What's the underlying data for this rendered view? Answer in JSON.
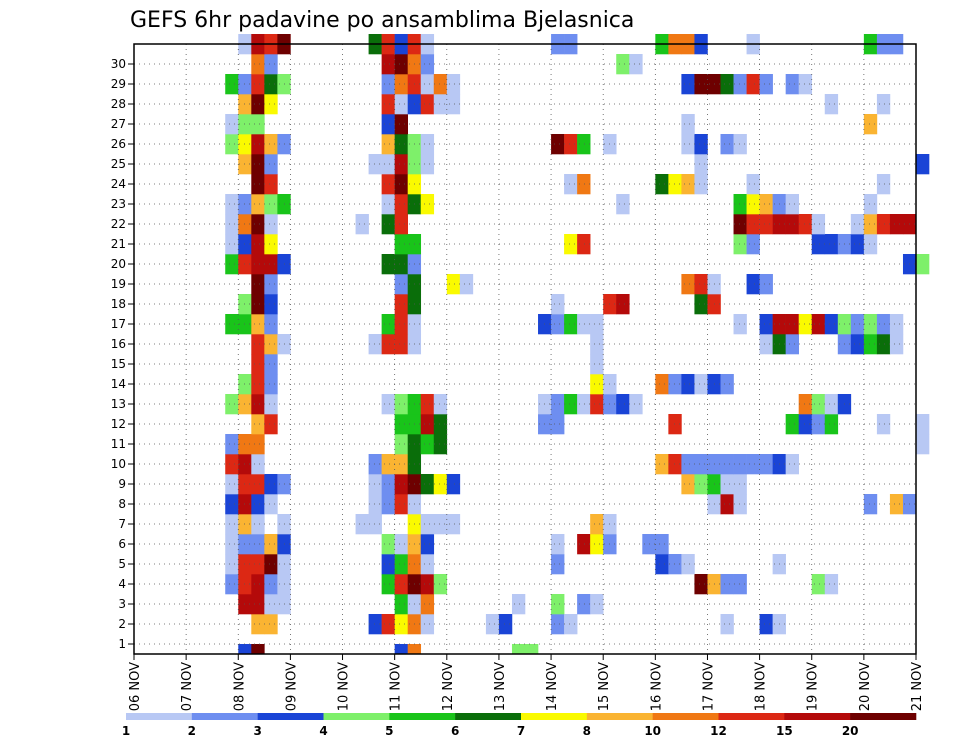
{
  "chart_data": {
    "type": "heatmap",
    "title": "GEFS 6hr padavine po ansamblima Bjelasnica",
    "xlabel": "",
    "ylabel": "",
    "x_ticks": [
      "06 NOV",
      "07 NOV",
      "08 NOV",
      "09 NOV",
      "10 NOV",
      "11 NOV",
      "12 NOV",
      "13 NOV",
      "14 NOV",
      "15 NOV",
      "16 NOV",
      "17 NOV",
      "18 NOV",
      "19 NOV",
      "20 NOV",
      "21 NOV"
    ],
    "y_ticks": [
      "1",
      "2",
      "3",
      "4",
      "5",
      "6",
      "7",
      "8",
      "9",
      "10",
      "11",
      "12",
      "13",
      "14",
      "15",
      "16",
      "17",
      "18",
      "19",
      "20",
      "21",
      "22",
      "23",
      "24",
      "25",
      "26",
      "27",
      "28",
      "29",
      "30"
    ],
    "ylim": [
      0,
      30
    ],
    "xlim": [
      0,
      60
    ],
    "grid": true,
    "colorbar": {
      "labels": [
        "1",
        "2",
        "3",
        "4",
        "5",
        "6",
        "7",
        "8",
        "10",
        "12",
        "15",
        "20"
      ],
      "colors": [
        "#b8c8f4",
        "#6e8ef0",
        "#1a44d6",
        "#7ef06a",
        "#19c41a",
        "#0a6e0a",
        "#fafa00",
        "#fab432",
        "#f07814",
        "#dc2814",
        "#b40a0a",
        "#6e0000"
      ]
    },
    "legend_levels": {
      "1": "#b8c8f4",
      "2": "#6e8ef0",
      "3": "#1a44d6",
      "4": "#7ef06a",
      "5": "#19c41a",
      "6": "#0a6e0a",
      "7": "#fafa00",
      "8": "#fab432",
      "9": "#f07814",
      "10": "#dc2814",
      "11": "#b40a0a",
      "12": "#6e0000"
    },
    "member_rows": {
      "30": "8:1,9:11,10:10,11:12,18:6,19:10,20:3,21:10,22:1,32:2,33:2,40:5,41:9,42:9,43:3,47:1,56:5,57:2,58:2",
      "29": "9:9,10:2,19:11,20:12,21:9,22:2,37:4,38:1",
      "28": "7:5,8:2,9:10,10:6,11:4,19:2,20:9,21:10,22:1,23:9,24:1,42:3,43:12,44:12,45:6,46:2,47:10,48:2,50:2,51:1",
      "27": "8:8,9:12,10:7,19:10,20:1,21:3,22:10,23:1,24:1,53:1,57:1",
      "26": "7:1,8:4,9:4,19:3,20:12,42:1,56:8",
      "25": "7:4,8:7,9:11,10:8,11:2,19:8,20:6,21:4,22:1,32:12,33:10,34:5,36:1,42:1,43:3,45:2,46:1",
      "24": "8:8,9:12,10:2,18:1,19:1,20:11,21:4,22:1,43:1,60:3",
      "23": "9:12,10:10,19:10,20:12,21:7,33:1,34:9,40:6,41:7,42:8,43:1,47:1,57:1",
      "22": "7:1,8:2,9:8,10:4,11:5,19:1,20:10,21:6,22:7,37:1,46:5,47:7,48:8,49:2,50:1,56:1",
      "21": "7:1,8:9,9:12,10:1,17:1,19:6,20:10,46:12,47:10,48:10,49:11,50:11,51:10,52:1,55:1,56:8,57:10,58:11,59:11",
      "20": "7:1,8:3,9:11,10:7,20:5,21:5,33:7,34:10,46:4,47:2,52:3,53:3,54:2,55:3,56:1",
      "19": "7:5,8:10,9:11,10:11,11:3,19:6,20:6,21:2,59:3,60:4",
      "18": "9:12,10:2,20:2,21:6,24:7,25:1,42:9,43:10,44:1,47:3,48:2",
      "17": "8:4,9:12,10:3,20:10,21:6,32:1,36:10,37:11,43:6,44:10",
      "16": "7:5,8:5,9:8,10:2,19:5,20:10,21:1,31:3,32:2,33:5,34:1,35:1,46:1,48:3,49:11,50:11,51:7,52:11,53:3,54:4,55:2,56:4,57:2,58:1",
      "15": "9:10,10:8,11:1,18:1,19:10,20:10,21:1,35:1,48:1,49:6,50:2,54:2,55:3,56:5,57:6,58:1",
      "14": "9:10,10:2,35:1",
      "13": "8:4,9:10,10:2,35:7,36:1,40:9,41:2,42:3,43:1,44:3,45:2",
      "12": "7:4,8:8,9:11,10:1,19:1,20:4,21:5,22:10,23:1,31:1,32:2,33:5,34:1,35:10,36:2,37:3,38:1,51:9,52:4,53:1,54:3",
      "11": "9:8,10:10,20:5,21:5,22:11,23:6,31:2,32:2,41:10,50:5,51:3,52:2,53:5,57:1,60:1",
      "10": "7:2,8:9,9:9,20:4,21:6,22:5,23:6,60:1",
      "9": "7:10,8:11,9:1,18:2,19:8,20:8,21:6,40:8,41:10,42:2,43:2,44:2,45:2,46:2,47:2,48:2,49:3,50:1",
      "8": "7:1,8:10,9:10,10:3,11:2,18:1,19:2,20:11,21:12,22:6,23:7,24:3,42:8,43:4,44:5,45:1,46:1",
      "7": "7:3,8:11,9:3,10:1,18:1,19:2,20:10,21:1,44:1,45:11,46:1,56:2,58:8,59:2",
      "6": "7:1,8:8,9:1,11:1,17:1,18:1,21:7,22:1,23:1,24:1,35:8,36:1",
      "5": "7:1,8:2,9:2,10:8,11:3,19:4,20:1,21:8,22:3,32:1,34:11,35:7,36:2,39:2,40:2",
      "4": "7:1,8:10,9:10,10:12,11:1,19:3,20:5,21:9,22:1,32:2,40:3,41:2,42:1,49:1",
      "3": "7:2,8:10,9:11,10:2,11:1,19:5,20:10,21:12,22:11,23:4,43:12,44:8,45:2,46:2,52:4,53:1",
      "2": "8:11,9:11,10:1,11:1,20:5,21:1,22:9,29:1,32:4,34:2,35:1",
      "1": "9:8,10:8,18:3,19:10,20:7,21:9,22:1,27:1,28:3,32:2,33:1,45:1,48:3,49:1",
      "0": "8:3,9:12,20:3,21:9,29:4,30:4"
    }
  }
}
